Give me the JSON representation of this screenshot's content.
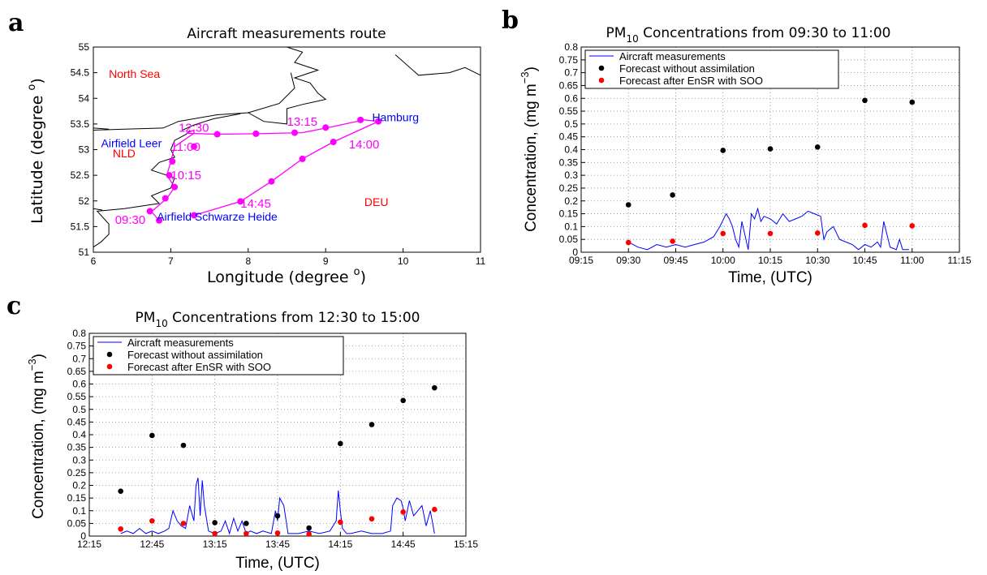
{
  "panels": {
    "a": "a",
    "b": "b",
    "c": "c"
  },
  "colors": {
    "route": "#ff00ff",
    "place_label": "#ff0000",
    "airfield_label": "#0000ff",
    "measurement_line": "#0000ff",
    "forecast_no_assim": "#000000",
    "forecast_ensr": "#ff0000",
    "coast": "#000000"
  },
  "chart_data": [
    {
      "type": "map",
      "title": "Aircraft measurements route",
      "xlabel": "Longitude (degree ",
      "xlabel_sup": "o",
      "xlabel_end": ")",
      "ylabel": "Latitude (degree ",
      "ylabel_sup": "o",
      "ylabel_end": ")",
      "xlim": [
        6,
        11
      ],
      "ylim": [
        51,
        55
      ],
      "xticks": [
        6,
        7,
        8,
        9,
        10,
        11
      ],
      "yticks": [
        51,
        51.5,
        52,
        52.5,
        53,
        53.5,
        54,
        54.5,
        55
      ],
      "xtick_labels": [
        "6",
        "7",
        "8",
        "9",
        "10",
        "11"
      ],
      "ytick_labels": [
        "51",
        "51.5",
        "52",
        "52.5",
        "53",
        "53.5",
        "54",
        "54.5",
        "55"
      ],
      "region_labels": [
        {
          "text": "North Sea",
          "lon": 6.2,
          "lat": 54.4,
          "kind": "place"
        },
        {
          "text": "NLD",
          "lon": 6.25,
          "lat": 52.85,
          "kind": "place"
        },
        {
          "text": "DEU",
          "lon": 9.5,
          "lat": 51.9,
          "kind": "place"
        },
        {
          "text": "Airfield Leer",
          "lon": 6.1,
          "lat": 53.05,
          "kind": "airfield"
        },
        {
          "text": "Airfield Schwarze Heide",
          "lon": 6.82,
          "lat": 51.62,
          "kind": "airfield"
        },
        {
          "text": "Hamburg",
          "lon": 9.6,
          "lat": 53.55,
          "kind": "airfield"
        }
      ],
      "route_points": [
        {
          "lon": 7.3,
          "lat": 51.72
        },
        {
          "lon": 7.9,
          "lat": 51.99
        },
        {
          "lon": 8.3,
          "lat": 52.38
        },
        {
          "lon": 8.7,
          "lat": 52.82
        },
        {
          "lon": 9.1,
          "lat": 53.15
        },
        {
          "lon": 9.68,
          "lat": 53.55
        },
        {
          "lon": 9.5,
          "lat": 53.58
        },
        {
          "lon": 9.1,
          "lat": 53.45
        },
        {
          "lon": 8.7,
          "lat": 53.33
        },
        {
          "lon": 8.1,
          "lat": 53.31
        },
        {
          "lon": 7.6,
          "lat": 53.3
        },
        {
          "lon": 7.2,
          "lat": 53.32
        },
        {
          "lon": 7.3,
          "lat": 53.38
        },
        {
          "lon": 7.3,
          "lat": 53.32
        },
        {
          "lon": 7.05,
          "lat": 53.06
        },
        {
          "lon": 7.0,
          "lat": 52.77
        },
        {
          "lon": 6.95,
          "lat": 52.5
        },
        {
          "lon": 7.05,
          "lat": 52.27
        },
        {
          "lon": 6.95,
          "lat": 52.05
        },
        {
          "lon": 6.75,
          "lat": 51.79
        },
        {
          "lon": 6.85,
          "lat": 51.62
        }
      ],
      "route_markers": [
        {
          "lon": 6.85,
          "lat": 51.62
        },
        {
          "lon": 6.73,
          "lat": 51.8
        },
        {
          "lon": 6.93,
          "lat": 52.05
        },
        {
          "lon": 7.05,
          "lat": 52.27
        },
        {
          "lon": 6.98,
          "lat": 52.5
        },
        {
          "lon": 7.02,
          "lat": 52.77
        },
        {
          "lon": 7.3,
          "lat": 53.06
        },
        {
          "lon": 7.6,
          "lat": 53.3
        },
        {
          "lon": 8.1,
          "lat": 53.31
        },
        {
          "lon": 8.6,
          "lat": 53.33
        },
        {
          "lon": 9.0,
          "lat": 53.43
        },
        {
          "lon": 9.45,
          "lat": 53.58
        },
        {
          "lon": 9.68,
          "lat": 53.55
        },
        {
          "lon": 9.1,
          "lat": 53.15
        },
        {
          "lon": 8.7,
          "lat": 52.82
        },
        {
          "lon": 8.3,
          "lat": 52.38
        },
        {
          "lon": 7.9,
          "lat": 51.99
        },
        {
          "lon": 7.3,
          "lat": 51.72
        }
      ],
      "time_labels": [
        {
          "text": "09:30",
          "lon": 6.28,
          "lat": 51.55
        },
        {
          "text": "10:15",
          "lon": 7.0,
          "lat": 52.42
        },
        {
          "text": "11:00",
          "lon": 7.0,
          "lat": 52.98
        },
        {
          "text": "12:30",
          "lon": 7.1,
          "lat": 53.35
        },
        {
          "text": "13:15",
          "lon": 8.5,
          "lat": 53.47
        },
        {
          "text": "14:00",
          "lon": 9.3,
          "lat": 53.02
        },
        {
          "text": "14:45",
          "lon": 7.9,
          "lat": 51.87
        }
      ]
    },
    {
      "type": "scatter+line",
      "title": "PM",
      "title_sub": "10",
      "title_rest": " Concentrations from 09:30 to 11:00",
      "xlabel": "Time, (UTC)",
      "ylabel": "Concentration, (mg m",
      "ylabel_sup": "−3",
      "ylabel_end": ")",
      "xlim": [
        "09:15",
        "11:15"
      ],
      "ylim": [
        0,
        0.8
      ],
      "xticks": [
        "09:15",
        "09:30",
        "09:45",
        "10:00",
        "10:15",
        "10:30",
        "10:45",
        "11:00",
        "11:15"
      ],
      "yticks": [
        "0",
        "0.05",
        "0.1",
        "0.15",
        "0.2",
        "0.25",
        "0.3",
        "0.35",
        "0.4",
        "0.45",
        "0.5",
        "0.55",
        "0.6",
        "0.65",
        "0.7",
        "0.75",
        "0.8"
      ],
      "grid": true,
      "legend": {
        "position": "top-left",
        "entries": [
          "Aircraft measurements",
          "Forecast without assimilation",
          "Forecast after EnSR with SOO"
        ]
      },
      "series": [
        {
          "name": "Forecast without assimilation",
          "kind": "points",
          "x": [
            "09:30",
            "09:44",
            "10:00",
            "10:15",
            "10:30",
            "10:45",
            "11:00"
          ],
          "y": [
            0.185,
            0.223,
            0.397,
            0.403,
            0.41,
            0.592,
            0.585
          ]
        },
        {
          "name": "Forecast after EnSR with SOO",
          "kind": "points",
          "x": [
            "09:30",
            "09:44",
            "10:00",
            "10:15",
            "10:30",
            "10:45",
            "11:00"
          ],
          "y": [
            0.038,
            0.043,
            0.073,
            0.073,
            0.075,
            0.105,
            0.103
          ]
        },
        {
          "name": "Aircraft measurements",
          "kind": "line",
          "x": [
            "09:30",
            "09:33",
            "09:36",
            "09:39",
            "09:42",
            "09:45",
            "09:48",
            "09:51",
            "09:54",
            "09:57",
            "09:59",
            "10:01",
            "10:02",
            "10:03",
            "10:04",
            "10:05",
            "10:06",
            "10:08",
            "10:09",
            "10:10",
            "10:11",
            "10:12",
            "10:13",
            "10:15",
            "10:17",
            "10:19",
            "10:21",
            "10:23",
            "10:25",
            "10:27",
            "10:29",
            "10:31",
            "10:32",
            "10:33",
            "10:35",
            "10:37",
            "10:39",
            "10:41",
            "10:43",
            "10:45",
            "10:47",
            "10:49",
            "10:50",
            "10:51",
            "10:53",
            "10:55",
            "10:56",
            "10:57",
            "10:59"
          ],
          "y": [
            0.04,
            0.02,
            0.01,
            0.03,
            0.02,
            0.03,
            0.02,
            0.03,
            0.04,
            0.06,
            0.1,
            0.15,
            0.13,
            0.1,
            0.05,
            0.02,
            0.12,
            0.01,
            0.15,
            0.13,
            0.17,
            0.12,
            0.14,
            0.13,
            0.11,
            0.15,
            0.12,
            0.13,
            0.14,
            0.16,
            0.15,
            0.14,
            0.05,
            0.08,
            0.1,
            0.05,
            0.04,
            0.03,
            0.01,
            0.03,
            0.02,
            0.04,
            0.02,
            0.12,
            0.02,
            0.01,
            0.05,
            0.01,
            0.01
          ]
        }
      ]
    },
    {
      "type": "scatter+line",
      "title": "PM",
      "title_sub": "10",
      "title_rest": " Concentrations from 12:30 to 15:00",
      "xlabel": "Time, (UTC)",
      "ylabel": "Concentration, (mg m",
      "ylabel_sup": "−3",
      "ylabel_end": ")",
      "xlim": [
        "12:15",
        "15:15"
      ],
      "ylim": [
        0,
        0.8
      ],
      "xticks": [
        "12:15",
        "12:45",
        "13:15",
        "13:45",
        "14:15",
        "14:45",
        "15:15"
      ],
      "yticks": [
        "0",
        "0.05",
        "0.1",
        "0.15",
        "0.2",
        "0.25",
        "0.3",
        "0.35",
        "0.4",
        "0.45",
        "0.5",
        "0.55",
        "0.6",
        "0.65",
        "0.7",
        "0.75",
        "0.8"
      ],
      "grid": true,
      "legend": {
        "position": "top-left",
        "entries": [
          "Aircraft measurements",
          "Forecast without assimilation",
          "Forecast after EnSR with SOO"
        ]
      },
      "series": [
        {
          "name": "Forecast without assimilation",
          "kind": "points",
          "x": [
            "12:30",
            "12:45",
            "13:00",
            "13:15",
            "13:30",
            "13:45",
            "14:00",
            "14:15",
            "14:30",
            "14:45",
            "15:00"
          ],
          "y": [
            0.177,
            0.397,
            0.358,
            0.053,
            0.05,
            0.08,
            0.032,
            0.365,
            0.44,
            0.535,
            0.585
          ]
        },
        {
          "name": "Forecast after EnSR with SOO",
          "kind": "points",
          "x": [
            "12:30",
            "12:45",
            "13:00",
            "13:15",
            "13:30",
            "13:45",
            "14:00",
            "14:15",
            "14:30",
            "14:45",
            "15:00"
          ],
          "y": [
            0.028,
            0.06,
            0.05,
            0.01,
            0.01,
            0.012,
            0.008,
            0.055,
            0.068,
            0.095,
            0.105
          ]
        },
        {
          "name": "Aircraft measurements",
          "kind": "line",
          "x": [
            "12:30",
            "12:33",
            "12:36",
            "12:39",
            "12:42",
            "12:45",
            "12:48",
            "12:51",
            "12:53",
            "12:55",
            "12:57",
            "12:59",
            "13:01",
            "13:03",
            "13:05",
            "13:06",
            "13:07",
            "13:08",
            "13:09",
            "13:10",
            "13:12",
            "13:15",
            "13:18",
            "13:20",
            "13:22",
            "13:24",
            "13:26",
            "13:28",
            "13:30",
            "13:32",
            "13:35",
            "13:38",
            "13:42",
            "13:44",
            "13:45",
            "13:46",
            "13:48",
            "13:50",
            "13:55",
            "14:00",
            "14:05",
            "14:10",
            "14:13",
            "14:14",
            "14:15",
            "14:16",
            "14:18",
            "14:20",
            "14:25",
            "14:30",
            "14:35",
            "14:39",
            "14:40",
            "14:42",
            "14:44",
            "14:45",
            "14:46",
            "14:48",
            "14:50",
            "14:52",
            "14:54",
            "14:56",
            "14:58",
            "15:00"
          ],
          "y": [
            0.01,
            0.02,
            0.01,
            0.03,
            0.01,
            0.02,
            0.01,
            0.02,
            0.03,
            0.1,
            0.06,
            0.04,
            0.03,
            0.12,
            0.06,
            0.2,
            0.23,
            0.08,
            0.22,
            0.12,
            0.02,
            0.01,
            0.02,
            0.06,
            0.01,
            0.07,
            0.02,
            0.06,
            0.01,
            0.02,
            0.01,
            0.02,
            0.01,
            0.1,
            0.06,
            0.15,
            0.12,
            0.01,
            0.01,
            0.02,
            0.01,
            0.02,
            0.06,
            0.18,
            0.1,
            0.03,
            0.01,
            0.01,
            0.02,
            0.01,
            0.01,
            0.02,
            0.12,
            0.15,
            0.14,
            0.11,
            0.06,
            0.14,
            0.08,
            0.1,
            0.12,
            0.04,
            0.1,
            0.01
          ]
        }
      ]
    }
  ]
}
